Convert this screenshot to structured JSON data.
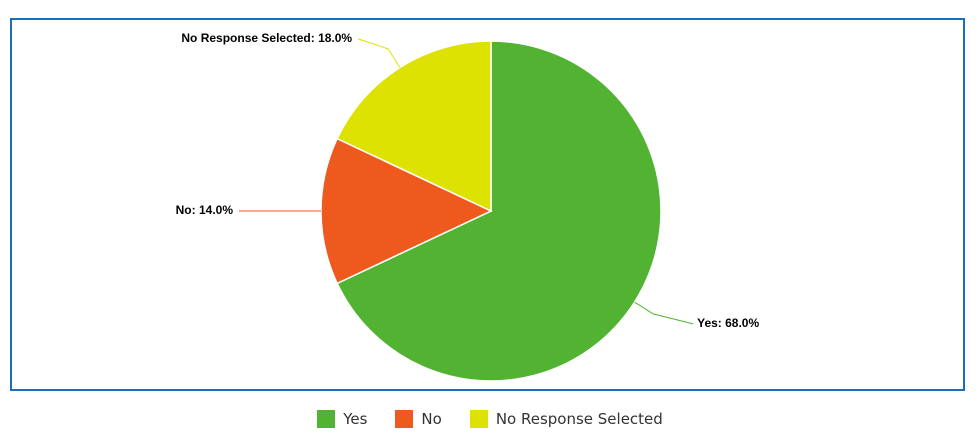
{
  "chart_data": {
    "type": "pie",
    "categories": [
      "Yes",
      "No",
      "No Response Selected"
    ],
    "values": [
      68.0,
      14.0,
      18.0
    ],
    "labels": [
      "Yes: 68.0%",
      "No: 14.0%",
      "No Response Selected: 18.0%"
    ],
    "colors": [
      "#52b332",
      "#ee5a1e",
      "#dde202"
    ],
    "legend_position": "bottom"
  }
}
